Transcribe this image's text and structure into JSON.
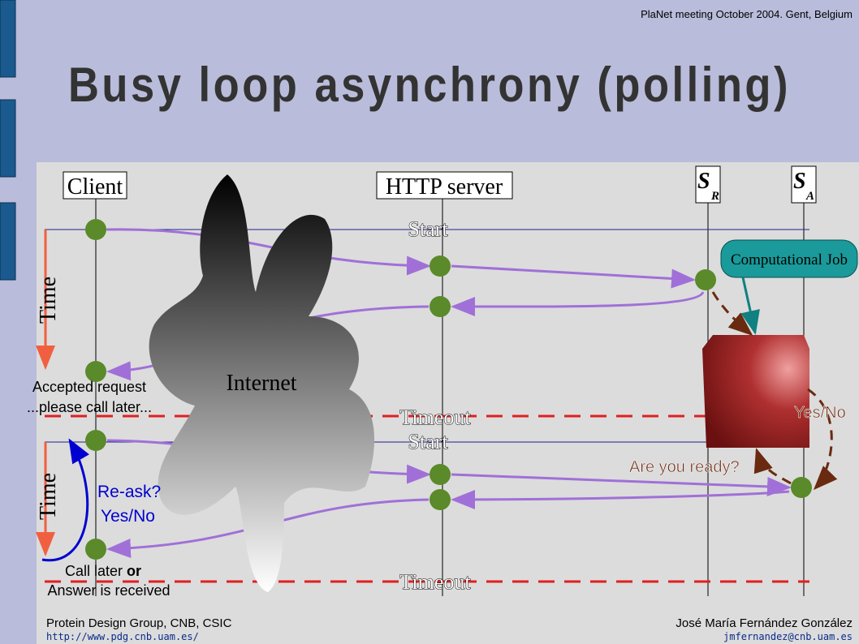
{
  "header": {
    "note": "PlaNet meeting October 2004. Gent, Belgium",
    "title": "Busy loop asynchrony (polling)"
  },
  "lanes": {
    "client": "Client",
    "server": "HTTP server",
    "sr": {
      "main": "S",
      "sub": "R"
    },
    "sa": {
      "main": "S",
      "sub": "A"
    }
  },
  "labels": {
    "start_1": "Start",
    "start_2": "Start",
    "timeout_1": "Timeout",
    "timeout_2": "Timeout",
    "time_1": "Time",
    "time_2": "Time",
    "internet": "Internet",
    "job": "Computational Job",
    "accepted_1": "Accepted request",
    "accepted_2": "...please call later...",
    "reask_1": "Re-ask?",
    "reask_2": "Yes/No",
    "call_later": "Call later",
    "or": "or",
    "answer": "Answer is received",
    "ready": "Are you ready?",
    "yes_no": "Yes/No"
  },
  "footer": {
    "group": "Protein Design Group, CNB, CSIC",
    "url": "http://www.pdg.cnb.uam.es/",
    "author": "José María Fernández González",
    "email": "jmfernandez@cnb.uam.es"
  }
}
